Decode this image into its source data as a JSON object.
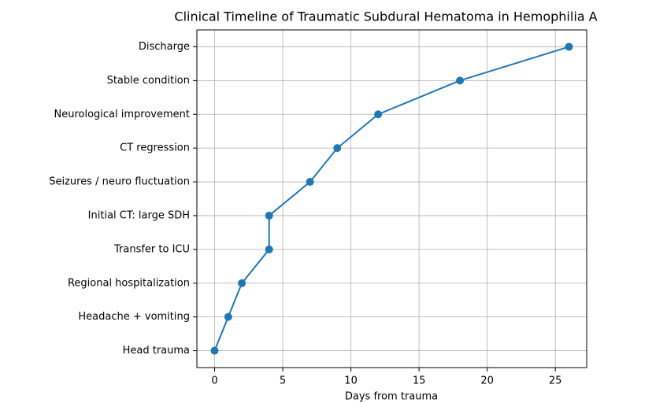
{
  "chart_data": {
    "type": "line",
    "title": "Clinical Timeline of Traumatic Subdural Hematoma in Hemophilia A",
    "x_label": "Days from trauma",
    "categories": [
      "Head trauma",
      "Headache + vomiting",
      "Regional hospitalization",
      "Transfer to ICU",
      "Initial CT: large SDH",
      "Seizures / neuro fluctuation",
      "CT regression",
      "Neurological improvement",
      "Stable condition",
      "Discharge"
    ],
    "values": [
      0,
      1,
      2,
      4,
      4,
      7,
      9,
      12,
      18,
      26
    ],
    "color": "#1f77b4",
    "xlim": [
      -1.3,
      27.3
    ],
    "xticks": [
      0,
      5,
      10,
      15,
      20,
      25
    ],
    "grid": true
  }
}
